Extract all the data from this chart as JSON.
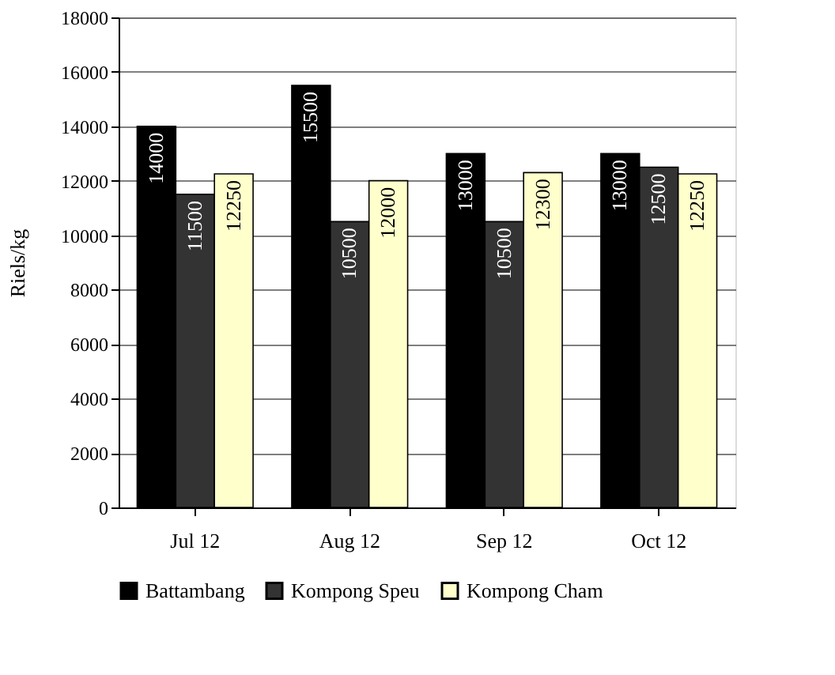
{
  "chart_data": {
    "type": "bar",
    "ylabel": "Riels/kg",
    "categories": [
      "Jul 12",
      "Aug 12",
      "Sep 12",
      "Oct 12"
    ],
    "series": [
      {
        "name": "Battambang",
        "color": "#000000",
        "values": [
          14000,
          15500,
          13000,
          13000
        ]
      },
      {
        "name": "Kompong Speu",
        "color": "#333333",
        "values": [
          11500,
          10500,
          10500,
          12500
        ]
      },
      {
        "name": "Kompong Cham",
        "color": "#ffffcc",
        "values": [
          12250,
          12000,
          12300,
          12250
        ]
      }
    ],
    "ylim": [
      0,
      18000
    ],
    "yticks": [
      0,
      2000,
      4000,
      6000,
      8000,
      10000,
      12000,
      14000,
      16000,
      18000
    ],
    "grid": "y",
    "legend": "bottom",
    "data_labels": true
  }
}
